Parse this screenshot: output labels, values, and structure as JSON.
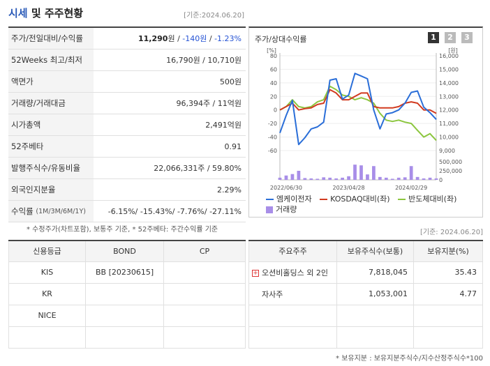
{
  "header": {
    "title_a": "시세",
    "title_b": " 및 주주현황",
    "date": "[기준:2024.06.20]"
  },
  "stock_table": {
    "rows": [
      {
        "label": "주가/전일대비/수익률",
        "price": "11,290",
        "unit": "원",
        "change": "-140원",
        "rate": "-1.23%"
      },
      {
        "label": "52Weeks 최고/최저",
        "value": "16,790원 / 10,710원"
      },
      {
        "label": "액면가",
        "value": "500원"
      },
      {
        "label": "거래량/거래대금",
        "value": "96,394주 / 11억원"
      },
      {
        "label": "시가총액",
        "value": "2,491억원"
      },
      {
        "label": "52주베타",
        "value": "0.91"
      },
      {
        "label": "발행주식수/유동비율",
        "value": "22,066,331주 / 59.80%"
      },
      {
        "label": "외국인지분율",
        "value": "2.29%"
      },
      {
        "label": "수익률",
        "label_small": "(1M/3M/6M/1Y)",
        "value": "-6.15%/ -15.43%/ -7.76%/ -27.11%"
      }
    ],
    "sep": " / "
  },
  "note1": "* 수정주가(차트포함), 보통주 기준, * 52주베타: 주간수익률 기준",
  "chart_panel": {
    "title": "주가/상대수익률",
    "pages": [
      "1",
      "2",
      "3"
    ],
    "legend": [
      {
        "name": "엠케이전자",
        "color": "#2a6ed8"
      },
      {
        "name": "KOSDAQ대비(좌)",
        "color": "#d13a1f"
      },
      {
        "name": "반도체대비(좌)",
        "color": "#8cc63f"
      },
      {
        "name": "거래량",
        "color": "#a88ee8"
      }
    ]
  },
  "chart_data": {
    "type": "line",
    "left_unit": "[%]",
    "right_unit": "[원]",
    "left_ticks": [
      "80",
      "60",
      "40",
      "20",
      "0",
      "-20",
      "-40",
      "-60"
    ],
    "right_ticks": [
      "16,000",
      "15,000",
      "14,000",
      "13,000",
      "12,000",
      "11,000",
      "10,000",
      "9,000"
    ],
    "volume_ticks": [
      "500,000",
      "250,000",
      "0"
    ],
    "x_ticks": [
      "2022/06/30",
      "2023/04/28",
      "2024/02/29"
    ],
    "ylim_left": [
      -60,
      80
    ],
    "ylim_right": [
      9000,
      16000
    ],
    "series": [
      {
        "name": "엠케이전자",
        "axis": "right",
        "color": "#2a6ed8",
        "values": [
          10300,
          11600,
          12700,
          9450,
          9950,
          10600,
          10750,
          11100,
          14200,
          14300,
          12800,
          13100,
          14700,
          14500,
          14300,
          12000,
          10600,
          11700,
          11800,
          12000,
          12500,
          13300,
          13400,
          12200,
          11800,
          11300
        ]
      },
      {
        "name": "KOSDAQ대비(좌)",
        "axis": "left",
        "color": "#d13a1f",
        "values": [
          0,
          5,
          10,
          0,
          2,
          3,
          8,
          10,
          30,
          25,
          15,
          15,
          20,
          25,
          25,
          5,
          3,
          3,
          3,
          5,
          10,
          12,
          10,
          0,
          0,
          -5
        ]
      },
      {
        "name": "반도체대비(좌)",
        "axis": "left",
        "color": "#8cc63f",
        "values": [
          0,
          5,
          15,
          5,
          3,
          5,
          12,
          15,
          35,
          30,
          22,
          20,
          15,
          18,
          15,
          10,
          -5,
          -15,
          -17,
          -15,
          -18,
          -20,
          -30,
          -40,
          -35,
          -45
        ]
      }
    ],
    "volume": [
      60000,
      120000,
      160000,
      250000,
      50000,
      40000,
      30000,
      70000,
      60000,
      40000,
      60000,
      100000,
      420000,
      400000,
      150000,
      380000,
      80000,
      60000,
      30000,
      60000,
      70000,
      380000,
      80000,
      40000,
      60000,
      40000
    ]
  },
  "date2": "[기준: 2024.06.20]",
  "credit_table": {
    "headers": [
      "신용등급",
      "BOND",
      "CP"
    ],
    "rows": [
      {
        "agency": "KIS",
        "bond": "BB   [20230615]",
        "cp": ""
      },
      {
        "agency": "KR",
        "bond": "",
        "cp": ""
      },
      {
        "agency": "NICE",
        "bond": "",
        "cp": ""
      },
      {
        "agency": "",
        "bond": "",
        "cp": ""
      }
    ]
  },
  "holder_table": {
    "headers": [
      "주요주주",
      "보유주식수(보통)",
      "보유지분(%)"
    ],
    "rows": [
      {
        "name": "오션비홀딩스 외 2인",
        "shares": "7,818,045",
        "pct": "35.43",
        "expand": "+"
      },
      {
        "name": "자사주",
        "shares": "1,053,001",
        "pct": "4.77",
        "expand": ""
      },
      {
        "name": "",
        "shares": "",
        "pct": "",
        "expand": ""
      },
      {
        "name": "",
        "shares": "",
        "pct": "",
        "expand": ""
      }
    ]
  },
  "note2": "* 보유지분 : 보유지분주식수/지수산정주식수*100"
}
